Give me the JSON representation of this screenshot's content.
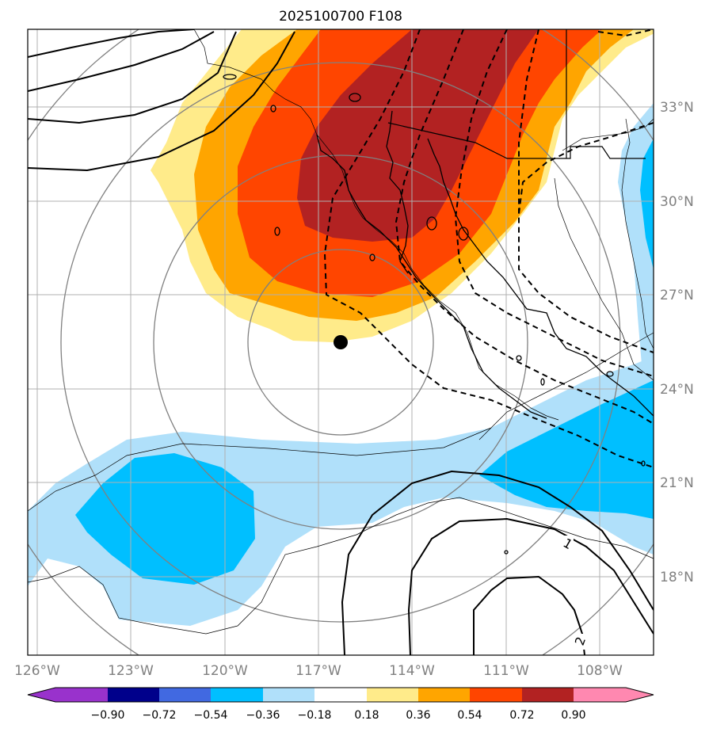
{
  "title": "2025100700 F108",
  "map": {
    "lon_labels": [
      "126°W",
      "123°W",
      "120°W",
      "117°W",
      "114°W",
      "111°W",
      "108°W"
    ],
    "lat_labels": [
      "33°N",
      "30°N",
      "27°N",
      "24°N",
      "21°N",
      "18°N"
    ],
    "center_marker": {
      "lat": 25.4,
      "lon": -116.3
    },
    "contour_labels": [
      "1",
      "2"
    ],
    "fill_colors": {
      "pos_018_036": "#ffeb8a",
      "pos_036_054": "#ffa500",
      "pos_054_072": "#ff4500",
      "pos_072_090": "#b22222",
      "neg_018_036": "#b0e0fa",
      "neg_036_054": "#00bfff"
    }
  },
  "colorbar": {
    "ticks": [
      "−0.90",
      "−0.72",
      "−0.54",
      "−0.36",
      "−0.18",
      "0.18",
      "0.36",
      "0.54",
      "0.72",
      "0.90"
    ],
    "colors": [
      "#9932cc",
      "#00008b",
      "#4169e1",
      "#00bfff",
      "#b0e0fa",
      "#ffffff",
      "#ffeb8a",
      "#ffa500",
      "#ff4500",
      "#b22222",
      "#ff88b0"
    ]
  }
}
